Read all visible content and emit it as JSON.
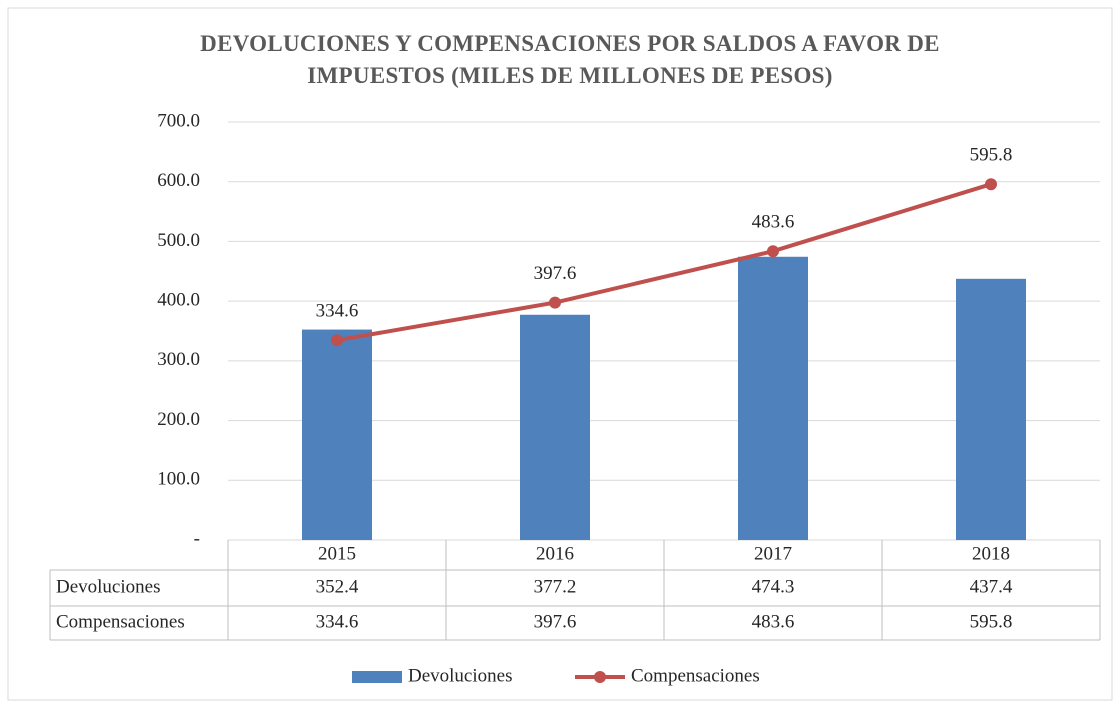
{
  "chart_data": {
    "type": "bar",
    "title": "DEVOLUCIONES Y COMPENSACIONES POR SALDOS A FAVOR DE IMPUESTOS (MILES DE MILLONES DE PESOS)",
    "categories": [
      "2015",
      "2016",
      "2017",
      "2018"
    ],
    "series": [
      {
        "name": "Devoluciones",
        "color": "#4f81bd",
        "values": [
          352.4,
          377.2,
          474.3,
          437.4
        ]
      },
      {
        "name": "Compensaciones",
        "type": "line",
        "color": "#c0504d",
        "values": [
          334.6,
          397.6,
          483.6,
          595.8
        ]
      }
    ],
    "ylim": [
      0,
      700
    ],
    "yticks": [
      {
        "value": 0,
        "label": "-"
      },
      {
        "value": 100,
        "label": "100.0"
      },
      {
        "value": 200,
        "label": "200.0"
      },
      {
        "value": 300,
        "label": "300.0"
      },
      {
        "value": 400,
        "label": "400.0"
      },
      {
        "value": 500,
        "label": "500.0"
      },
      {
        "value": 600,
        "label": "600.0"
      },
      {
        "value": 700,
        "label": "700.0"
      }
    ],
    "grid": true,
    "legend": "bottom"
  }
}
